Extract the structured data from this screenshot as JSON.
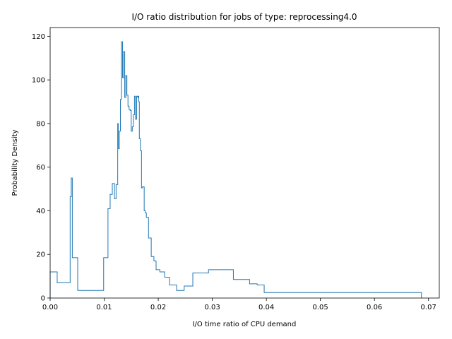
{
  "chart_data": {
    "type": "line",
    "drawstyle": "steps-post",
    "title": "I/O ratio distribution for jobs of type: reprocessing4.0",
    "xlabel": "I/O time ratio of CPU demand",
    "ylabel": "Probability Density",
    "xlim": [
      0.0,
      0.072
    ],
    "ylim": [
      0,
      124
    ],
    "xticks": [
      0.0,
      0.01,
      0.02,
      0.03,
      0.04,
      0.05,
      0.06,
      0.07
    ],
    "xtick_labels": [
      "0.00",
      "0.01",
      "0.02",
      "0.03",
      "0.04",
      "0.05",
      "0.06",
      "0.07"
    ],
    "yticks": [
      0,
      20,
      40,
      60,
      80,
      100,
      120
    ],
    "ytick_labels": [
      "0",
      "20",
      "40",
      "60",
      "80",
      "100",
      "120"
    ],
    "grid": false,
    "color": "#1f77b4",
    "edges": [
      0.0,
      0.0013,
      0.0037,
      0.0039,
      0.0041,
      0.0051,
      0.0099,
      0.0107,
      0.0111,
      0.0115,
      0.0119,
      0.0122,
      0.0125,
      0.0126,
      0.0128,
      0.013,
      0.0132,
      0.0134,
      0.0136,
      0.0138,
      0.014,
      0.0142,
      0.0144,
      0.0146,
      0.0148,
      0.015,
      0.0152,
      0.0154,
      0.0156,
      0.0158,
      0.016,
      0.0162,
      0.0163,
      0.0164,
      0.0165,
      0.0167,
      0.0169,
      0.0171,
      0.0174,
      0.0176,
      0.0178,
      0.0182,
      0.0187,
      0.0192,
      0.0196,
      0.0203,
      0.0212,
      0.0221,
      0.0234,
      0.0248,
      0.0264,
      0.0293,
      0.0339,
      0.0369,
      0.0383,
      0.0396,
      0.0416,
      0.0438,
      0.0466,
      0.0687
    ],
    "values": [
      12,
      7,
      46.5,
      55,
      18.5,
      3.5,
      18.5,
      41,
      47.5,
      52.5,
      45.5,
      52,
      80,
      68.5,
      76.5,
      91,
      117.5,
      101,
      113,
      92,
      102,
      93,
      88,
      86.5,
      86,
      76.5,
      78.5,
      84,
      92.5,
      82,
      92.5,
      92,
      92.5,
      90,
      73,
      67.5,
      50.5,
      51,
      40,
      39,
      37,
      27.5,
      19,
      17,
      13,
      12,
      9.5,
      6,
      3.5,
      5.5,
      11.5,
      13,
      8.5,
      6.5,
      6,
      2.5,
      2.5,
      2.5,
      2.5
    ]
  }
}
